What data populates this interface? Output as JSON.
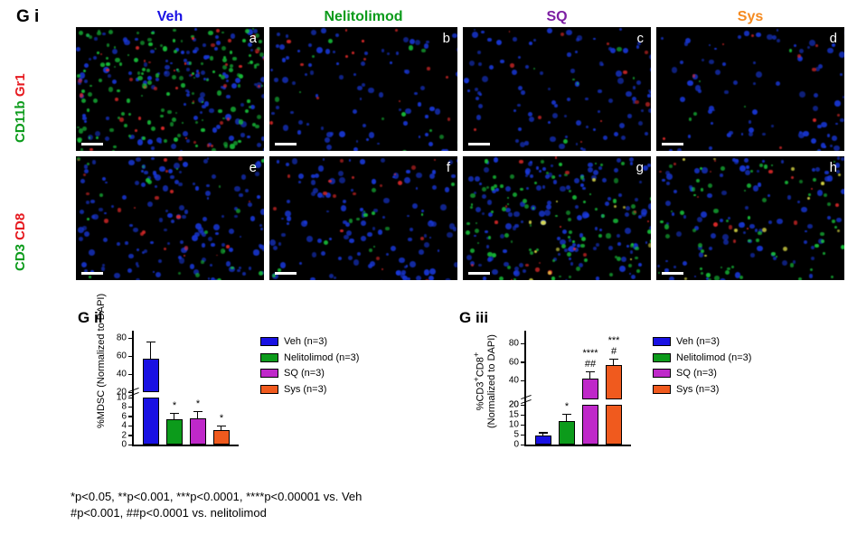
{
  "panels": {
    "gi_label": "G i",
    "gii_label": "G ii",
    "giii_label": "G iii"
  },
  "columns": [
    {
      "label": "Veh",
      "color": "#1911e3"
    },
    {
      "label": "Nelitolimod",
      "color": "#0c9b1b"
    },
    {
      "label": "SQ",
      "color": "#7d1fa3"
    },
    {
      "label": "Sys",
      "color": "#f58a1f"
    }
  ],
  "row_markers": {
    "top": [
      {
        "text": "CD11b",
        "color": "#0c9b1b"
      },
      {
        "text": "Gr1",
        "color": "#e6191f"
      }
    ],
    "bottom": [
      {
        "text": "CD3",
        "color": "#0c9b1b"
      },
      {
        "text": "CD8",
        "color": "#e6191f"
      }
    ]
  },
  "cells": [
    "a",
    "b",
    "c",
    "d",
    "e",
    "f",
    "g",
    "h"
  ],
  "chart_gii": {
    "type": "bar",
    "ylabel": "%MDSC (Normalized to DAPI)",
    "y_upper_lim": 80,
    "y_upper_min": 20,
    "y_upper_step": 20,
    "y_lower_lim": 10,
    "y_lower_step": 2,
    "bars": [
      {
        "name": "Veh",
        "value": 57,
        "err": 18,
        "color": "#1911e3",
        "sig": ""
      },
      {
        "name": "Nelitolimod",
        "value": 5.4,
        "err": 1.2,
        "color": "#0c9b1b",
        "sig": "*"
      },
      {
        "name": "SQ",
        "value": 5.6,
        "err": 1.4,
        "color": "#bf28c9",
        "sig": "*"
      },
      {
        "name": "Sys",
        "value": 3.0,
        "err": 0.9,
        "color": "#f05a1e",
        "sig": "*"
      }
    ],
    "legend": [
      {
        "label": "Veh (n=3)",
        "color": "#1911e3"
      },
      {
        "label": "Nelitolimod (n=3)",
        "color": "#0c9b1b"
      },
      {
        "label": "SQ (n=3)",
        "color": "#bf28c9"
      },
      {
        "label": "Sys (n=3)",
        "color": "#f05a1e"
      }
    ]
  },
  "chart_giii": {
    "type": "bar",
    "ylabel_html": "%CD3⁺CD8⁺\n(Normalized to DAPI)",
    "y_upper_lim": 80,
    "y_upper_min": 20,
    "y_upper_step": 20,
    "y_lower_lim": 20,
    "y_lower_step": 5,
    "bars": [
      {
        "name": "Veh",
        "value": 4.5,
        "err": 1.3,
        "color": "#1911e3",
        "sig": ""
      },
      {
        "name": "Nelitolimod",
        "value": 12,
        "err": 3,
        "color": "#0c9b1b",
        "sig": "*"
      },
      {
        "name": "SQ",
        "value": 42,
        "err": 7,
        "color": "#bf28c9",
        "sig": "**** ##"
      },
      {
        "name": "Sys",
        "value": 57,
        "err": 6,
        "color": "#f05a1e",
        "sig": "*** #"
      }
    ],
    "legend": [
      {
        "label": "Veh (n=3)",
        "color": "#1911e3"
      },
      {
        "label": "Nelitolimod (n=3)",
        "color": "#0c9b1b"
      },
      {
        "label": "SQ (n=3)",
        "color": "#bf28c9"
      },
      {
        "label": "Sys (n=3)",
        "color": "#f05a1e"
      }
    ]
  },
  "footnote_lines": [
    "*p<0.05, **p<0.001, ***p<0.0001, ****p<0.00001 vs. Veh",
    "#p<0.001, ##p<0.0001 vs. nelitolimod"
  ],
  "dot_colors": {
    "blue": "#1938d8",
    "green": "#19c23b",
    "red": "#e22b2b",
    "yellow": "#e8e84a"
  }
}
